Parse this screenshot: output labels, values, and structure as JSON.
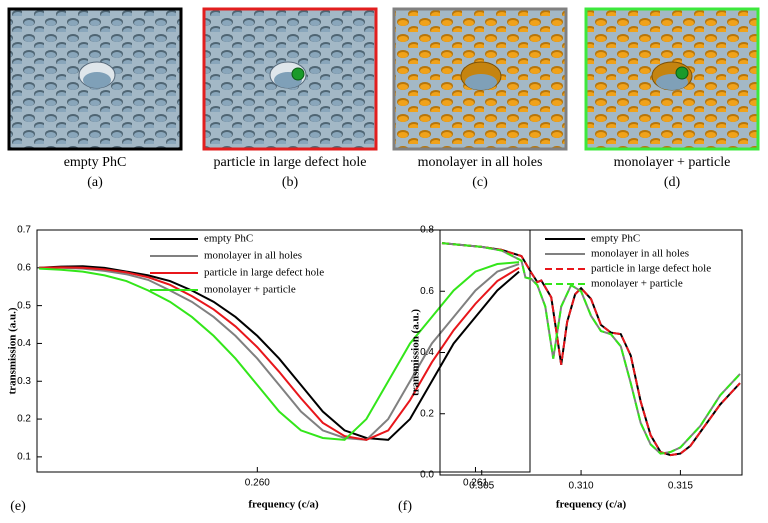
{
  "panels": [
    {
      "caption": "empty PhC",
      "label": "(a)"
    },
    {
      "caption": "particle in large defect hole",
      "label": "(b)"
    },
    {
      "caption": "monolayer  in all holes",
      "label": "(c)"
    },
    {
      "caption": "monolayer + particle",
      "label": "(d)"
    }
  ],
  "chart_data": [
    {
      "type": "line",
      "panel_label": "(e)",
      "xlabel": "frequency (c/a)",
      "ylabel": "transmission (a.u.)",
      "xlim": [
        0.25899,
        0.26125
      ],
      "ylim": [
        0.06,
        0.7
      ],
      "xticks": [
        {
          "value": 0.26,
          "label": "0.260"
        },
        {
          "value": 0.261,
          "label": "0.261"
        }
      ],
      "yticks": [
        0.1,
        0.2,
        0.3,
        0.4,
        0.5,
        0.6,
        0.7
      ],
      "legend": "top-center",
      "x": [
        0.259,
        0.2591,
        0.2592,
        0.2593,
        0.2594,
        0.2595,
        0.2596,
        0.2597,
        0.2598,
        0.2599,
        0.26,
        0.2601,
        0.2602,
        0.2603,
        0.2604,
        0.2605,
        0.2606,
        0.2607,
        0.2608,
        0.2609,
        0.261,
        0.2611,
        0.2612
      ],
      "series": [
        {
          "name": "empty PhC",
          "color": "#000000",
          "dash": false,
          "values": [
            0.6,
            0.603,
            0.604,
            0.6,
            0.59,
            0.58,
            0.565,
            0.54,
            0.51,
            0.47,
            0.42,
            0.36,
            0.29,
            0.22,
            0.17,
            0.15,
            0.145,
            0.2,
            0.3,
            0.4,
            0.47,
            0.54,
            0.59
          ]
        },
        {
          "name": "monolayer in all holes",
          "color": "#808080",
          "dash": false,
          "values": [
            0.6,
            0.6,
            0.598,
            0.592,
            0.583,
            0.568,
            0.54,
            0.51,
            0.47,
            0.42,
            0.36,
            0.29,
            0.22,
            0.17,
            0.15,
            0.145,
            0.2,
            0.3,
            0.4,
            0.47,
            0.54,
            0.59,
            0.61
          ]
        },
        {
          "name": "particle in large defect hole",
          "color": "#e8161b",
          "dash": false,
          "values": [
            0.6,
            0.601,
            0.6,
            0.596,
            0.588,
            0.575,
            0.555,
            0.525,
            0.49,
            0.445,
            0.39,
            0.325,
            0.255,
            0.19,
            0.155,
            0.145,
            0.17,
            0.25,
            0.35,
            0.435,
            0.505,
            0.565,
            0.6
          ]
        },
        {
          "name": "monolayer + particle",
          "color": "#33e61a",
          "dash": false,
          "values": [
            0.598,
            0.595,
            0.59,
            0.58,
            0.565,
            0.54,
            0.51,
            0.47,
            0.42,
            0.36,
            0.29,
            0.22,
            0.17,
            0.15,
            0.145,
            0.2,
            0.3,
            0.4,
            0.47,
            0.54,
            0.59,
            0.61,
            0.615
          ]
        }
      ]
    },
    {
      "type": "line",
      "panel_label": "(f)",
      "xlabel": "frequency (c/a)",
      "ylabel": "transmission (a.u.)",
      "xlim": [
        0.3029,
        0.3181
      ],
      "ylim": [
        0,
        0.8
      ],
      "xticks": [
        {
          "value": 0.305,
          "label": "0.305"
        },
        {
          "value": 0.31,
          "label": "0.310"
        },
        {
          "value": 0.315,
          "label": "0.315"
        }
      ],
      "yticks": [
        {
          "value": 0,
          "label": "0.0"
        },
        0.2,
        0.4,
        0.6,
        0.8
      ],
      "legend": "top-right",
      "series": [
        {
          "name": "empty PhC",
          "color": "#000000",
          "dash": false,
          "x": [
            0.303,
            0.305,
            0.306,
            0.307,
            0.3075,
            0.3078,
            0.308,
            0.3085,
            0.3088,
            0.309,
            0.3093,
            0.3097,
            0.31,
            0.3105,
            0.311,
            0.3115,
            0.312,
            0.3125,
            0.313,
            0.3135,
            0.314,
            0.3145,
            0.315,
            0.3155,
            0.316,
            0.317,
            0.318
          ],
          "values": [
            0.757,
            0.745,
            0.735,
            0.715,
            0.66,
            0.63,
            0.635,
            0.58,
            0.45,
            0.36,
            0.5,
            0.59,
            0.61,
            0.575,
            0.49,
            0.465,
            0.46,
            0.39,
            0.24,
            0.13,
            0.075,
            0.065,
            0.07,
            0.095,
            0.14,
            0.23,
            0.3
          ]
        },
        {
          "name": "monolayer in all holes",
          "color": "#808080",
          "dash": false,
          "x": [
            0.303,
            0.305,
            0.306,
            0.307,
            0.3072,
            0.3075,
            0.3078,
            0.3082,
            0.3086,
            0.309,
            0.3095,
            0.31,
            0.3105,
            0.311,
            0.3115,
            0.312,
            0.3125,
            0.313,
            0.3135,
            0.314,
            0.3145,
            0.315,
            0.316,
            0.317,
            0.318
          ],
          "values": [
            0.757,
            0.745,
            0.733,
            0.7,
            0.645,
            0.64,
            0.62,
            0.55,
            0.38,
            0.55,
            0.62,
            0.6,
            0.52,
            0.47,
            0.46,
            0.42,
            0.3,
            0.17,
            0.1,
            0.07,
            0.075,
            0.09,
            0.16,
            0.26,
            0.33
          ]
        },
        {
          "name": "particle in large defect hole",
          "color": "#e8161b",
          "dash": true,
          "x": [
            0.303,
            0.305,
            0.306,
            0.307,
            0.3075,
            0.3078,
            0.308,
            0.3085,
            0.3088,
            0.309,
            0.3093,
            0.3097,
            0.31,
            0.3105,
            0.311,
            0.3115,
            0.312,
            0.3125,
            0.313,
            0.3135,
            0.314,
            0.3145,
            0.315,
            0.3155,
            0.316,
            0.317,
            0.318
          ],
          "values": [
            0.757,
            0.745,
            0.735,
            0.715,
            0.66,
            0.63,
            0.635,
            0.58,
            0.45,
            0.36,
            0.5,
            0.59,
            0.61,
            0.575,
            0.49,
            0.465,
            0.46,
            0.39,
            0.24,
            0.13,
            0.075,
            0.065,
            0.07,
            0.095,
            0.14,
            0.23,
            0.3
          ]
        },
        {
          "name": "monolayer + particle",
          "color": "#33e61a",
          "dash": true,
          "x": [
            0.303,
            0.305,
            0.306,
            0.307,
            0.3072,
            0.3075,
            0.3078,
            0.3082,
            0.3086,
            0.309,
            0.3095,
            0.31,
            0.3105,
            0.311,
            0.3115,
            0.312,
            0.3125,
            0.313,
            0.3135,
            0.314,
            0.3145,
            0.315,
            0.316,
            0.317,
            0.318
          ],
          "values": [
            0.757,
            0.745,
            0.733,
            0.7,
            0.645,
            0.64,
            0.62,
            0.55,
            0.38,
            0.55,
            0.62,
            0.6,
            0.52,
            0.47,
            0.46,
            0.42,
            0.3,
            0.17,
            0.1,
            0.07,
            0.075,
            0.09,
            0.16,
            0.26,
            0.33
          ]
        }
      ]
    }
  ]
}
